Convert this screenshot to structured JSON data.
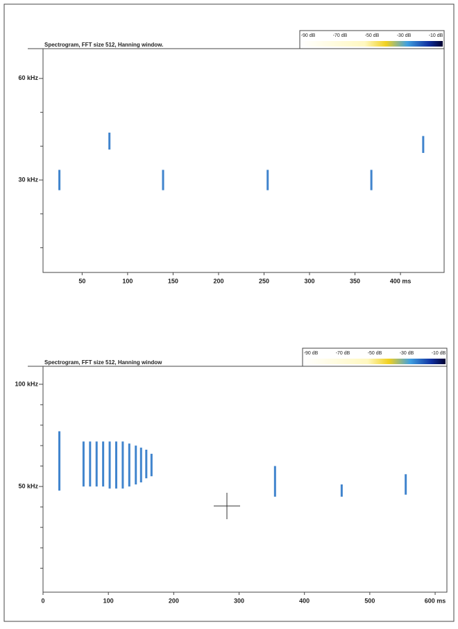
{
  "chart_data": [
    {
      "type": "spectrogram",
      "title": "Spectrogram, FFT size 512, Hanning window.",
      "colorbar_labels": [
        "-90 dB",
        "-70 dB",
        "-50 dB",
        "-30 dB",
        "-10 dB"
      ],
      "xlim": [
        7,
        448
      ],
      "ylim": [
        2.7,
        68.8
      ],
      "xticks": [
        50,
        100,
        150,
        200,
        250,
        300,
        350,
        {
          "value": 400,
          "label": "400 ms"
        }
      ],
      "yticks": [
        {
          "value": 30,
          "label": "30 kHz"
        },
        {
          "value": 60,
          "label": "60 kHz"
        }
      ],
      "yminorticks": [
        10,
        20,
        40,
        50
      ],
      "color": "#1f6fc4",
      "calls": [
        {
          "t": 25,
          "f": [
            27,
            33
          ]
        },
        {
          "t": 80,
          "f": [
            39,
            44
          ]
        },
        {
          "t": 139,
          "f": [
            27,
            33
          ]
        },
        {
          "t": 254,
          "f": [
            27,
            33
          ]
        },
        {
          "t": 368,
          "f": [
            27,
            33
          ]
        },
        {
          "t": 425,
          "f": [
            38,
            43
          ]
        }
      ]
    },
    {
      "type": "spectrogram",
      "title": "Spectrogram, FFT size 512, Hanning window",
      "colorbar_labels": [
        "-90 dB",
        "-70 dB",
        "-50 dB",
        "-30 dB",
        "-10 dB"
      ],
      "xlim": [
        0,
        618
      ],
      "ylim": [
        -1.7,
        108.8
      ],
      "xticks": [
        0,
        100,
        200,
        300,
        400,
        500,
        {
          "value": 600,
          "label": "600 ms"
        }
      ],
      "yticks": [
        {
          "value": 50,
          "label": "50 kHz"
        },
        {
          "value": 100,
          "label": "100 kHz"
        }
      ],
      "yminorticks": [
        10,
        20,
        30,
        40,
        60,
        70,
        80,
        90
      ],
      "color": "#1f6fc4",
      "calls": [
        {
          "t": 25,
          "f": [
            48,
            77
          ]
        },
        {
          "t": 62,
          "f": [
            50,
            72
          ]
        },
        {
          "t": 72,
          "f": [
            50,
            72
          ]
        },
        {
          "t": 82,
          "f": [
            50,
            72
          ]
        },
        {
          "t": 92,
          "f": [
            50,
            72
          ]
        },
        {
          "t": 102,
          "f": [
            49,
            72
          ]
        },
        {
          "t": 112,
          "f": [
            49,
            72
          ]
        },
        {
          "t": 122,
          "f": [
            49,
            72
          ]
        },
        {
          "t": 132,
          "f": [
            50,
            71
          ]
        },
        {
          "t": 142,
          "f": [
            51,
            70
          ]
        },
        {
          "t": 150,
          "f": [
            52,
            69
          ]
        },
        {
          "t": 158,
          "f": [
            54,
            68
          ]
        },
        {
          "t": 166,
          "f": [
            55,
            66
          ]
        },
        {
          "t": 355,
          "f": [
            45,
            60
          ]
        },
        {
          "t": 457,
          "f": [
            45,
            51
          ]
        },
        {
          "t": 555,
          "f": [
            46,
            56
          ]
        }
      ]
    }
  ]
}
